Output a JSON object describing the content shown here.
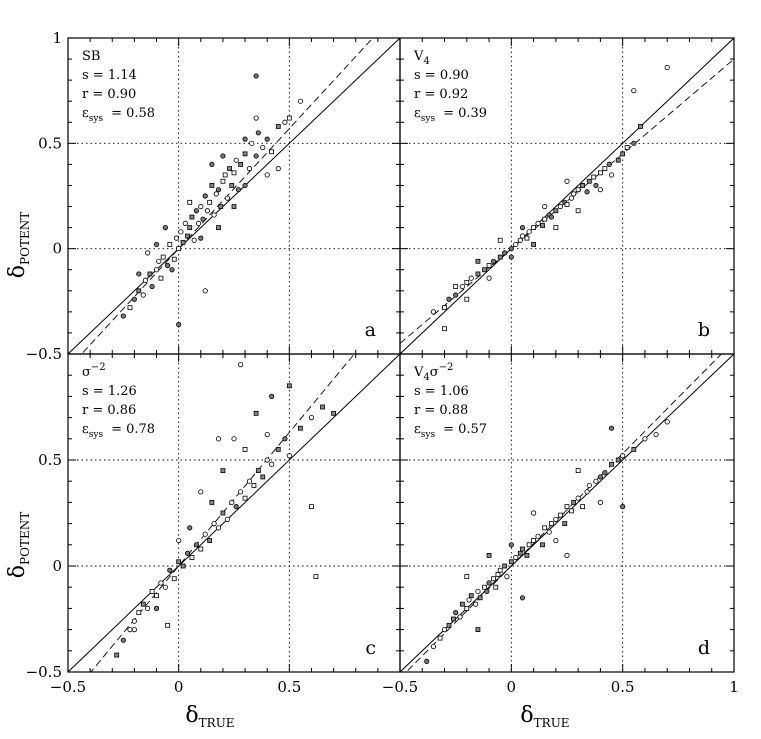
{
  "chart_data": [
    {
      "type": "scatter",
      "panel_label": "a",
      "annotations": {
        "line1": "SB",
        "line2": "s  =  1.14",
        "line3": "r  =  0.90",
        "eps_sym": "ε",
        "eps_sub": "sys",
        "eps_val": "=  0.58"
      },
      "slope": 1.14,
      "x": [
        -0.25,
        -0.22,
        -0.2,
        -0.18,
        -0.16,
        -0.15,
        -0.13,
        -0.12,
        -0.1,
        -0.09,
        -0.08,
        -0.07,
        -0.05,
        -0.04,
        -0.02,
        -0.01,
        0.0,
        0.01,
        0.02,
        0.03,
        0.04,
        0.05,
        0.06,
        0.07,
        0.08,
        0.09,
        0.1,
        0.11,
        0.12,
        0.13,
        0.14,
        0.15,
        0.16,
        0.17,
        0.18,
        0.19,
        0.2,
        0.21,
        0.22,
        0.23,
        0.24,
        0.25,
        0.26,
        0.27,
        0.28,
        0.3,
        0.32,
        0.33,
        0.35,
        0.36,
        0.38,
        0.4,
        0.42,
        0.45,
        0.48,
        0.5,
        0.55,
        -0.18,
        -0.14,
        -0.1,
        -0.06,
        -0.03,
        0.05,
        0.1,
        0.15,
        0.2,
        0.25,
        0.3,
        0.35,
        0.4,
        0.45,
        0.12,
        0.0,
        0.3,
        0.35,
        0.18
      ],
      "y": [
        -0.32,
        -0.28,
        -0.24,
        -0.2,
        -0.22,
        -0.15,
        -0.12,
        -0.18,
        -0.1,
        -0.06,
        -0.14,
        -0.04,
        -0.08,
        0.02,
        -0.05,
        0.05,
        0.0,
        0.08,
        0.03,
        0.12,
        0.06,
        0.1,
        0.15,
        0.04,
        0.18,
        0.12,
        0.2,
        0.14,
        0.25,
        0.18,
        0.22,
        0.3,
        0.16,
        0.26,
        0.28,
        0.2,
        0.32,
        0.35,
        0.24,
        0.38,
        0.3,
        0.36,
        0.42,
        0.28,
        0.4,
        0.45,
        0.38,
        0.5,
        0.44,
        0.55,
        0.48,
        0.52,
        0.46,
        0.58,
        0.6,
        0.62,
        0.7,
        -0.12,
        -0.02,
        0.02,
        0.1,
        -0.1,
        0.22,
        0.05,
        0.4,
        0.44,
        0.2,
        0.3,
        0.62,
        0.35,
        0.38,
        -0.2,
        -0.36,
        0.52,
        0.82,
        0.1
      ],
      "xlim": [
        -0.5,
        1
      ],
      "ylim": [
        -0.5,
        1
      ]
    },
    {
      "type": "scatter",
      "panel_label": "b",
      "annotations": {
        "line1": "V",
        "line1_sub": "4",
        "line2": "s  =  0.90",
        "line3": "r  =  0.92",
        "eps_sym": "ε",
        "eps_sub": "sys",
        "eps_val": "=  0.39"
      },
      "slope": 0.9,
      "x": [
        -0.35,
        -0.3,
        -0.28,
        -0.25,
        -0.22,
        -0.2,
        -0.18,
        -0.15,
        -0.12,
        -0.1,
        -0.08,
        -0.05,
        -0.03,
        0.0,
        0.02,
        0.04,
        0.05,
        0.07,
        0.08,
        0.1,
        0.12,
        0.14,
        0.15,
        0.17,
        0.18,
        0.2,
        0.22,
        0.24,
        0.25,
        0.27,
        0.28,
        0.3,
        0.32,
        0.34,
        0.35,
        0.37,
        0.38,
        0.4,
        0.42,
        0.44,
        0.45,
        0.48,
        0.5,
        0.52,
        0.55,
        0.58,
        -0.25,
        -0.2,
        -0.15,
        -0.1,
        -0.05,
        0.0,
        0.05,
        0.1,
        0.15,
        0.2,
        0.3,
        0.4,
        0.55,
        0.7,
        -0.3,
        0.25
      ],
      "y": [
        -0.3,
        -0.28,
        -0.24,
        -0.22,
        -0.18,
        -0.16,
        -0.14,
        -0.12,
        -0.1,
        -0.08,
        -0.06,
        -0.04,
        -0.02,
        0.0,
        0.02,
        0.04,
        0.06,
        0.05,
        0.08,
        0.1,
        0.12,
        0.11,
        0.14,
        0.16,
        0.15,
        0.18,
        0.2,
        0.22,
        0.21,
        0.24,
        0.26,
        0.28,
        0.3,
        0.27,
        0.32,
        0.34,
        0.3,
        0.36,
        0.38,
        0.4,
        0.35,
        0.42,
        0.45,
        0.48,
        0.5,
        0.58,
        -0.18,
        -0.24,
        -0.06,
        -0.14,
        0.04,
        -0.04,
        0.1,
        0.02,
        0.2,
        0.1,
        0.18,
        0.28,
        0.75,
        0.86,
        -0.38,
        0.32
      ],
      "xlim": [
        -0.5,
        1
      ],
      "ylim": [
        -0.5,
        1
      ]
    },
    {
      "type": "scatter",
      "panel_label": "c",
      "annotations": {
        "line1": "σ",
        "line1_sup": "−2",
        "line2": "s  =  1.26",
        "line3": "r  =  0.86",
        "eps_sym": "ε",
        "eps_sub": "sys",
        "eps_val": "=  0.78"
      },
      "slope": 1.26,
      "x": [
        -0.28,
        -0.25,
        -0.22,
        -0.2,
        -0.18,
        -0.16,
        -0.14,
        -0.12,
        -0.1,
        -0.08,
        -0.06,
        -0.04,
        -0.02,
        0.0,
        0.02,
        0.04,
        0.06,
        0.08,
        0.1,
        0.12,
        0.14,
        0.16,
        0.18,
        0.2,
        0.22,
        0.24,
        0.26,
        0.28,
        0.3,
        0.32,
        0.34,
        0.36,
        0.38,
        0.4,
        0.42,
        0.45,
        0.48,
        0.5,
        0.55,
        0.6,
        0.65,
        0.7,
        -0.2,
        -0.1,
        0.0,
        0.1,
        0.2,
        0.3,
        0.4,
        0.5,
        0.35,
        0.25,
        0.15,
        0.05,
        0.6,
        0.62,
        -0.05,
        0.28,
        0.42,
        0.18
      ],
      "y": [
        -0.42,
        -0.35,
        -0.3,
        -0.26,
        -0.22,
        -0.18,
        -0.2,
        -0.12,
        -0.14,
        -0.08,
        -0.1,
        -0.02,
        -0.06,
        0.02,
        0.0,
        0.06,
        0.04,
        0.1,
        0.08,
        0.15,
        0.12,
        0.2,
        0.18,
        0.25,
        0.22,
        0.3,
        0.28,
        0.35,
        0.32,
        0.4,
        0.38,
        0.45,
        0.42,
        0.5,
        0.48,
        0.55,
        0.6,
        0.52,
        0.65,
        0.7,
        0.75,
        0.72,
        -0.3,
        -0.2,
        0.12,
        0.35,
        0.45,
        0.55,
        0.62,
        0.85,
        0.72,
        0.6,
        0.3,
        0.18,
        0.28,
        -0.05,
        -0.28,
        0.95,
        0.8,
        0.6
      ],
      "xlim": [
        -0.5,
        1
      ],
      "ylim": [
        -0.5,
        1
      ]
    },
    {
      "type": "scatter",
      "panel_label": "d",
      "annotations": {
        "line1": "V",
        "line1_sub": "4",
        "line1b": "σ",
        "line1_sup": "−2",
        "line2": "s  =  1.06",
        "line3": "r  =  0.88",
        "eps_sym": "ε",
        "eps_sub": "sys",
        "eps_val": "=  0.57"
      },
      "slope": 1.06,
      "x": [
        -0.38,
        -0.35,
        -0.32,
        -0.3,
        -0.28,
        -0.26,
        -0.25,
        -0.23,
        -0.22,
        -0.2,
        -0.19,
        -0.18,
        -0.16,
        -0.15,
        -0.14,
        -0.12,
        -0.11,
        -0.1,
        -0.08,
        -0.07,
        -0.06,
        -0.05,
        -0.03,
        -0.02,
        0.0,
        0.02,
        0.04,
        0.05,
        0.07,
        0.08,
        0.1,
        0.12,
        0.14,
        0.15,
        0.17,
        0.18,
        0.2,
        0.22,
        0.24,
        0.25,
        0.27,
        0.28,
        0.3,
        0.32,
        0.34,
        0.35,
        0.38,
        0.4,
        0.42,
        0.45,
        0.48,
        0.5,
        0.55,
        0.6,
        0.65,
        0.7,
        -0.2,
        -0.1,
        0.0,
        0.1,
        0.2,
        0.3,
        0.4,
        0.5,
        -0.15,
        0.05,
        0.25,
        0.45
      ],
      "y": [
        -0.45,
        -0.38,
        -0.34,
        -0.3,
        -0.28,
        -0.25,
        -0.22,
        -0.24,
        -0.18,
        -0.2,
        -0.16,
        -0.14,
        -0.18,
        -0.12,
        -0.15,
        -0.1,
        -0.12,
        -0.08,
        -0.06,
        -0.1,
        -0.04,
        -0.02,
        0.0,
        -0.05,
        0.02,
        0.04,
        0.06,
        0.08,
        0.05,
        0.1,
        0.12,
        0.14,
        0.1,
        0.18,
        0.16,
        0.2,
        0.22,
        0.24,
        0.2,
        0.28,
        0.26,
        0.3,
        0.32,
        0.28,
        0.35,
        0.38,
        0.4,
        0.42,
        0.44,
        0.48,
        0.5,
        0.52,
        0.55,
        0.6,
        0.62,
        0.68,
        -0.05,
        0.05,
        0.1,
        0.25,
        0.12,
        0.45,
        0.3,
        0.28,
        -0.3,
        -0.15,
        0.05,
        0.65
      ],
      "xlim": [
        -0.5,
        1
      ],
      "ylim": [
        -0.5,
        1
      ]
    }
  ],
  "axes": {
    "y_label": "δ",
    "y_label_sub": "POTENT",
    "x_label": "δ",
    "x_label_sub": "TRUE",
    "x_ticks": [
      "−0.5",
      "0",
      "0.5",
      "1"
    ],
    "x_tick_values": [
      -0.5,
      0,
      0.5,
      1
    ],
    "y_ticks": [
      "−0.5",
      "0",
      "0.5",
      "1"
    ],
    "y_tick_values": [
      -0.5,
      0,
      0.5,
      1
    ]
  }
}
